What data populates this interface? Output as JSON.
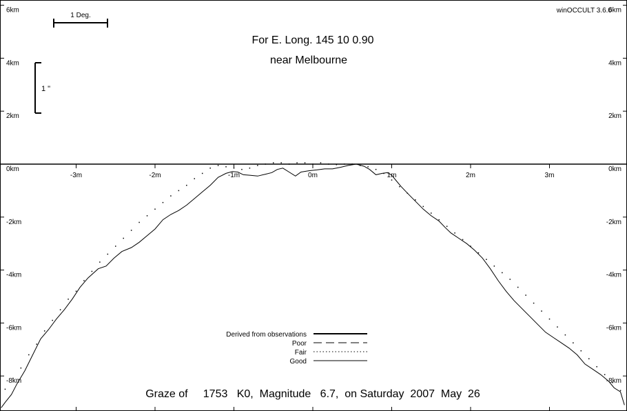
{
  "chart_data": {
    "type": "line",
    "app_label": "winOCCULT 3.6.0",
    "title_line1": "For E. Long.  145 10  0.90",
    "title_line2": "near Melbourne",
    "footer": "Graze of     1753   K0,  Magnitude   6.7,  on Saturday  2007  May  26",
    "scale_deg_label": "1 Deg.",
    "scale_arcsec_label": "1 \"",
    "xlim": [
      -4.0,
      4.0
    ],
    "ylim": [
      -9.2,
      6.3
    ],
    "x_ticks": [
      {
        "value": -3,
        "label": "-3m"
      },
      {
        "value": -2,
        "label": "-2m"
      },
      {
        "value": -1,
        "label": "-1m"
      },
      {
        "value": 0,
        "label": "0m"
      },
      {
        "value": 1,
        "label": "1m"
      },
      {
        "value": 2,
        "label": "2m"
      },
      {
        "value": 3,
        "label": "3m"
      }
    ],
    "y_ticks": [
      {
        "value": 6,
        "label": "6km"
      },
      {
        "value": 4,
        "label": "4km"
      },
      {
        "value": 2,
        "label": "2km"
      },
      {
        "value": 0,
        "label": "0km"
      },
      {
        "value": -2,
        "label": "-2km"
      },
      {
        "value": -4,
        "label": "-4km"
      },
      {
        "value": -6,
        "label": "-6km"
      },
      {
        "value": -8,
        "label": "-8km"
      }
    ],
    "legend": [
      {
        "label": "Derived from observations",
        "style": "thick"
      },
      {
        "label": "Poor",
        "style": "dashed"
      },
      {
        "label": "Fair",
        "style": "dotted"
      },
      {
        "label": "Good",
        "style": "thin"
      }
    ],
    "series": [
      {
        "name": "Good",
        "style": "thin",
        "x": [
          -3.95,
          -3.9,
          -3.82,
          -3.75,
          -3.65,
          -3.55,
          -3.45,
          -3.35,
          -3.25,
          -3.15,
          -3.05,
          -2.95,
          -2.85,
          -2.72,
          -2.62,
          -2.52,
          -2.42,
          -2.3,
          -2.2,
          -2.1,
          -2.0,
          -1.9,
          -1.8,
          -1.7,
          -1.6,
          -1.5,
          -1.4,
          -1.3,
          -1.2,
          -1.1,
          -1.02,
          -0.95,
          -0.88,
          -0.8,
          -0.7,
          -0.6,
          -0.52,
          -0.45,
          -0.38,
          -0.3,
          -0.22,
          -0.15,
          -0.05,
          0.05,
          0.15,
          0.25,
          0.35,
          0.45,
          0.55,
          0.65,
          0.72,
          0.8,
          0.88,
          0.95,
          1.0,
          1.05,
          1.12,
          1.2,
          1.3,
          1.4,
          1.5,
          1.6,
          1.68,
          1.75,
          1.85,
          1.95,
          2.05,
          2.15,
          2.25,
          2.35,
          2.45,
          2.55,
          2.65,
          2.75,
          2.85,
          2.95,
          3.05,
          3.15,
          3.25,
          3.35,
          3.45,
          3.55,
          3.65,
          3.75,
          3.82,
          3.9,
          3.95
        ],
        "y": [
          -9.2,
          -9.0,
          -8.7,
          -8.3,
          -7.8,
          -7.2,
          -6.6,
          -6.25,
          -5.85,
          -5.5,
          -5.1,
          -4.65,
          -4.3,
          -3.95,
          -3.85,
          -3.55,
          -3.3,
          -3.15,
          -2.95,
          -2.7,
          -2.45,
          -2.1,
          -1.9,
          -1.75,
          -1.55,
          -1.3,
          -1.05,
          -0.8,
          -0.5,
          -0.35,
          -0.28,
          -0.3,
          -0.4,
          -0.42,
          -0.45,
          -0.38,
          -0.32,
          -0.2,
          -0.15,
          -0.3,
          -0.45,
          -0.3,
          -0.25,
          -0.22,
          -0.18,
          -0.18,
          -0.12,
          -0.05,
          0.0,
          -0.08,
          -0.2,
          -0.4,
          -0.35,
          -0.32,
          -0.42,
          -0.6,
          -0.85,
          -1.1,
          -1.4,
          -1.7,
          -1.95,
          -2.15,
          -2.4,
          -2.6,
          -2.8,
          -3.0,
          -3.25,
          -3.55,
          -3.95,
          -4.4,
          -4.8,
          -5.15,
          -5.45,
          -5.75,
          -6.05,
          -6.35,
          -6.55,
          -6.75,
          -6.95,
          -7.2,
          -7.55,
          -7.75,
          -7.95,
          -8.2,
          -8.45,
          -8.6,
          -9.1
        ]
      },
      {
        "name": "Fair",
        "style": "dotted",
        "x": [
          -3.9,
          -3.8,
          -3.7,
          -3.6,
          -3.5,
          -3.4,
          -3.3,
          -3.2,
          -3.1,
          -3.0,
          -2.9,
          -2.8,
          -2.7,
          -2.6,
          -2.5,
          -2.4,
          -2.3,
          -2.2,
          -2.1,
          -2.0,
          -1.9,
          -1.8,
          -1.7,
          -1.6,
          -1.5,
          -1.4,
          -1.3,
          -1.2,
          -1.1,
          -1.0,
          -0.9,
          -0.8,
          -0.7,
          -0.6,
          -0.5,
          -0.4,
          -0.3,
          -0.2,
          -0.1,
          0.0,
          0.1,
          0.2,
          0.3,
          0.4,
          0.5,
          0.6,
          0.7,
          0.8,
          0.9,
          1.0,
          1.1,
          1.2,
          1.3,
          1.4,
          1.5,
          1.6,
          1.7,
          1.8,
          1.9,
          2.0,
          2.1,
          2.2,
          2.3,
          2.4,
          2.5,
          2.6,
          2.7,
          2.8,
          2.9,
          3.0,
          3.1,
          3.2,
          3.3,
          3.4,
          3.5,
          3.6,
          3.7,
          3.8,
          3.9
        ],
        "y": [
          -8.5,
          -8.1,
          -7.7,
          -7.2,
          -6.8,
          -6.3,
          -5.9,
          -5.5,
          -5.1,
          -4.8,
          -4.4,
          -4.05,
          -3.7,
          -3.4,
          -3.1,
          -2.8,
          -2.5,
          -2.2,
          -1.95,
          -1.7,
          -1.45,
          -1.2,
          -1.0,
          -0.8,
          -0.55,
          -0.35,
          -0.15,
          -0.05,
          -0.1,
          -0.15,
          -0.2,
          -0.15,
          -0.05,
          0.0,
          0.05,
          0.05,
          0.0,
          0.05,
          0.05,
          0.0,
          0.05,
          0.0,
          -0.02,
          0.0,
          0.0,
          -0.05,
          -0.1,
          -0.2,
          -0.35,
          -0.6,
          -0.85,
          -1.1,
          -1.35,
          -1.6,
          -1.85,
          -2.1,
          -2.35,
          -2.6,
          -2.85,
          -3.1,
          -3.35,
          -3.6,
          -3.85,
          -4.1,
          -4.35,
          -4.65,
          -4.95,
          -5.25,
          -5.55,
          -5.85,
          -6.15,
          -6.45,
          -6.75,
          -7.05,
          -7.35,
          -7.65,
          -7.95,
          -8.25,
          -8.55
        ]
      }
    ]
  }
}
